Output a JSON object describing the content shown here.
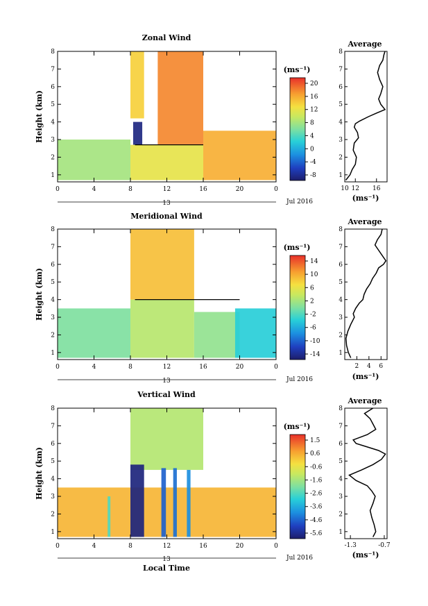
{
  "figure": {
    "xlabel": "Local Time",
    "date_label": "Jul 2016",
    "day_label": "13",
    "unit_label": "(ms⁻¹)",
    "avg_title": "Average",
    "height_label": "Height (km)"
  },
  "chart_data": [
    {
      "name": "zonal",
      "type": "heatmap",
      "title": "Zonal Wind",
      "ylabel": "Height (km)",
      "xlabel": "Local Time",
      "x_ticks": [
        "0",
        "4",
        "8",
        "12",
        "16",
        "20",
        "0"
      ],
      "xlim": [
        0,
        24
      ],
      "ylim": [
        0.6,
        8
      ],
      "y_ticks": [
        "1",
        "2",
        "3",
        "4",
        "5",
        "6",
        "7",
        "8"
      ],
      "colorbar": {
        "unit": "(ms⁻¹)",
        "ticks": [
          "20",
          "16",
          "12",
          "8",
          "4",
          "0",
          "-4",
          "-8"
        ],
        "range": [
          -10,
          22
        ]
      },
      "regions": [
        {
          "t0": 0,
          "t1": 8,
          "h0": 0.7,
          "h1": 3.0,
          "value": 8
        },
        {
          "t0": 8,
          "t1": 9.5,
          "h0": 4.2,
          "h1": 8.0,
          "value": 14
        },
        {
          "t0": 8.3,
          "t1": 9.3,
          "h0": 2.7,
          "h1": 4.0,
          "value": -9
        },
        {
          "t0": 11,
          "t1": 16,
          "h0": 2.7,
          "h1": 8.0,
          "value": 18
        },
        {
          "t0": 16,
          "t1": 24,
          "h0": 0.7,
          "h1": 3.5,
          "value": 16
        },
        {
          "t0": 8,
          "t1": 16,
          "h0": 0.7,
          "h1": 2.7,
          "value": 12
        }
      ],
      "contour_zero": [
        [
          8.5,
          2.7
        ],
        [
          16,
          2.7
        ]
      ],
      "average": {
        "title": "Average",
        "xlabel": "(ms⁻¹)",
        "x_ticks": [
          "10",
          "12",
          "16"
        ],
        "xlim": [
          10,
          18
        ],
        "profile_x": [
          10.2,
          11.0,
          11.4,
          12.0,
          12.2,
          11.6,
          11.8,
          12.6,
          12.4,
          11.8,
          12.0,
          12.8,
          14.5,
          16.0,
          17.6,
          16.8,
          16.4,
          16.8,
          17.2,
          16.6,
          16.2,
          16.6,
          17.2,
          17.4,
          17.6
        ],
        "profile_h": [
          0.7,
          1.0,
          1.3,
          1.6,
          2.0,
          2.4,
          2.8,
          3.1,
          3.4,
          3.7,
          3.9,
          4.05,
          4.3,
          4.5,
          4.7,
          5.0,
          5.3,
          5.6,
          6.0,
          6.4,
          6.8,
          7.2,
          7.5,
          7.8,
          8.0
        ]
      }
    },
    {
      "name": "meridional",
      "type": "heatmap",
      "title": "Meridional Wind",
      "ylabel": "Height (km)",
      "xlabel": "Local Time",
      "x_ticks": [
        "0",
        "4",
        "8",
        "12",
        "16",
        "20",
        "0"
      ],
      "xlim": [
        0,
        24
      ],
      "ylim": [
        0.6,
        8
      ],
      "y_ticks": [
        "1",
        "2",
        "3",
        "4",
        "5",
        "6",
        "7",
        "8"
      ],
      "colorbar": {
        "unit": "(ms⁻¹)",
        "ticks": [
          "14",
          "10",
          "6",
          "2",
          "-2",
          "-6",
          "-10",
          "-14"
        ],
        "range": [
          -16,
          16
        ]
      },
      "regions": [
        {
          "t0": 0,
          "t1": 8,
          "h0": 0.7,
          "h1": 3.5,
          "value": 0
        },
        {
          "t0": 8,
          "t1": 15,
          "h0": 0.7,
          "h1": 4.0,
          "value": 3
        },
        {
          "t0": 8,
          "t1": 15,
          "h0": 4.0,
          "h1": 8.0,
          "value": 9
        },
        {
          "t0": 15,
          "t1": 20,
          "h0": 0.7,
          "h1": 3.3,
          "value": 1
        },
        {
          "t0": 19.5,
          "t1": 24,
          "h0": 0.7,
          "h1": 3.5,
          "value": -4
        }
      ],
      "contour_zero": [
        [
          8.5,
          4.0
        ],
        [
          20,
          4.0
        ]
      ],
      "average": {
        "title": "Average",
        "xlabel": "(ms⁻¹)",
        "x_ticks": [
          "2",
          "4",
          "6"
        ],
        "xlim": [
          0,
          7
        ],
        "profile_x": [
          1.0,
          0.6,
          0.3,
          0.2,
          0.5,
          1.0,
          1.6,
          1.4,
          1.8,
          2.4,
          3.0,
          3.2,
          3.6,
          4.2,
          4.6,
          5.2,
          5.6,
          6.4,
          6.8,
          6.2,
          5.6,
          5.0,
          5.4,
          6.0,
          6.2
        ],
        "profile_h": [
          0.7,
          1.0,
          1.4,
          1.8,
          2.2,
          2.6,
          3.0,
          3.2,
          3.5,
          3.8,
          4.0,
          4.3,
          4.6,
          4.9,
          5.2,
          5.5,
          5.8,
          6.0,
          6.2,
          6.5,
          6.8,
          7.1,
          7.4,
          7.7,
          8.0
        ]
      }
    },
    {
      "name": "vertical",
      "type": "heatmap",
      "title": "Vertical Wind",
      "ylabel": "Height (km)",
      "xlabel": "Local Time",
      "x_ticks": [
        "0",
        "4",
        "8",
        "12",
        "16",
        "20",
        "0"
      ],
      "xlim": [
        0,
        24
      ],
      "ylim": [
        0.6,
        8
      ],
      "y_ticks": [
        "1",
        "2",
        "3",
        "4",
        "5",
        "6",
        "7",
        "8"
      ],
      "colorbar": {
        "unit": "(ms⁻¹)",
        "ticks": [
          "1.5",
          "0.6",
          "-0.6",
          "-1.6",
          "-2.6",
          "-3.6",
          "-4.6",
          "-5.6"
        ],
        "range": [
          -6.0,
          2.0
        ]
      },
      "regions": [
        {
          "t0": 0,
          "t1": 24,
          "h0": 0.7,
          "h1": 3.5,
          "value": 0.4
        },
        {
          "t0": 8,
          "t1": 16,
          "h0": 4.5,
          "h1": 8.0,
          "value": -1.3
        },
        {
          "t0": 8,
          "t1": 9.5,
          "h0": 0.7,
          "h1": 4.8,
          "value": -5.8
        },
        {
          "t0": 11.4,
          "t1": 11.9,
          "h0": 0.7,
          "h1": 4.6,
          "value": -4.6
        },
        {
          "t0": 12.7,
          "t1": 13.1,
          "h0": 0.7,
          "h1": 4.6,
          "value": -4.4
        },
        {
          "t0": 14.2,
          "t1": 14.6,
          "h0": 0.7,
          "h1": 4.5,
          "value": -4.0
        },
        {
          "t0": 5.5,
          "t1": 5.8,
          "h0": 0.7,
          "h1": 3.0,
          "value": -2.5
        }
      ],
      "contour_zero": [],
      "average": {
        "title": "Average",
        "xlabel": "(ms⁻¹)",
        "x_ticks": [
          "-1.3",
          "-0.7"
        ],
        "xlim": [
          -1.4,
          -0.65
        ],
        "profile_x": [
          -0.9,
          -0.85,
          -0.88,
          -0.92,
          -0.95,
          -0.9,
          -0.86,
          -0.92,
          -1.0,
          -1.2,
          -1.32,
          -1.1,
          -0.9,
          -0.75,
          -0.68,
          -0.8,
          -1.0,
          -1.2,
          -1.25,
          -1.0,
          -0.85,
          -0.9,
          -0.95,
          -1.05,
          -0.9
        ],
        "profile_h": [
          0.7,
          1.0,
          1.4,
          1.8,
          2.2,
          2.6,
          3.0,
          3.3,
          3.6,
          3.9,
          4.2,
          4.5,
          4.8,
          5.1,
          5.4,
          5.6,
          5.8,
          6.0,
          6.2,
          6.5,
          6.8,
          7.1,
          7.4,
          7.7,
          8.0
        ]
      }
    }
  ]
}
